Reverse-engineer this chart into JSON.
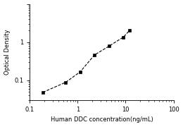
{
  "x_values": [
    0.188,
    0.563,
    1.125,
    2.25,
    4.5,
    9.0,
    12.0
  ],
  "y_values": [
    0.048,
    0.088,
    0.165,
    0.46,
    0.78,
    1.35,
    2.0
  ],
  "x_label": "Human DDC concentration(ng/mL)",
  "y_label": "Optical Density",
  "x_lim": [
    0.1,
    100
  ],
  "y_lim": [
    0.03,
    10
  ],
  "x_ticks": [
    0.1,
    1,
    10,
    100
  ],
  "y_ticks": [
    0.1,
    1
  ],
  "marker_color": "black",
  "line_color": "black",
  "line_style": "--",
  "marker_style": "s",
  "marker_size": 3.5,
  "background_color": "#ffffff",
  "label_fontsize": 6,
  "tick_fontsize": 6
}
